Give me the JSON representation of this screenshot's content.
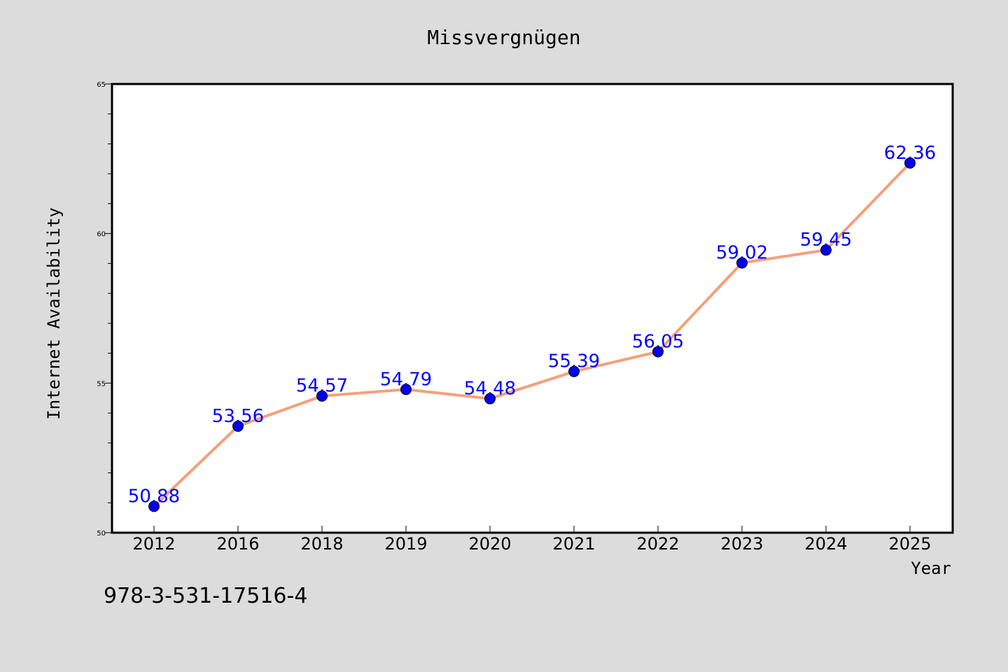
{
  "chart_data": {
    "type": "line",
    "title": "Missvergnügen",
    "xlabel": "Year",
    "ylabel": "Internet Availability",
    "categories": [
      "2012",
      "2016",
      "2018",
      "2019",
      "2020",
      "2021",
      "2022",
      "2023",
      "2024",
      "2025"
    ],
    "series": [
      {
        "values": [
          50.88,
          53.56,
          54.57,
          54.79,
          54.48,
          55.39,
          56.05,
          59.02,
          59.45,
          62.36
        ],
        "labels": [
          "50.88",
          "53.56",
          "54.57",
          "54.79",
          "54.48",
          "55.39",
          "56.05",
          "59.02",
          "59.45",
          "62.36"
        ],
        "line_color": "#f4a07c",
        "marker_color": "#0000ee",
        "label_color": "#0000ff"
      }
    ],
    "ylim": [
      50,
      65
    ],
    "y_major_ticks": [
      50,
      55,
      60,
      65
    ],
    "y_minor_step": 1,
    "grid": false,
    "legend": "none"
  },
  "annotation": "978-3-531-17516-4"
}
